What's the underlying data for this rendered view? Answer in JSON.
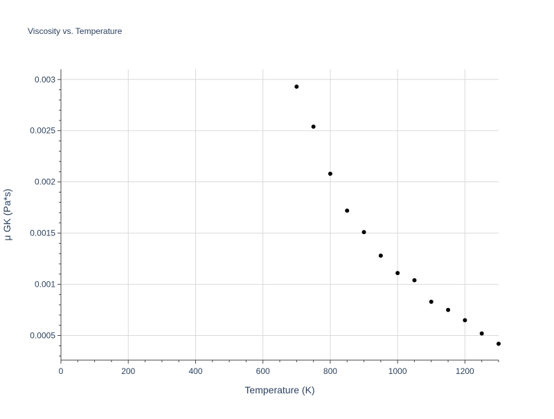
{
  "chart_data": {
    "type": "scatter",
    "title": "Viscosity vs. Temperature",
    "xlabel": "Temperature (K)",
    "ylabel": "μ GK (Pa*s)",
    "xlim": [
      0,
      1300
    ],
    "ylim": [
      0.00026,
      0.0031
    ],
    "x_ticks": [
      0,
      200,
      400,
      600,
      800,
      1000,
      1200
    ],
    "x_tick_labels": [
      "0",
      "200",
      "400",
      "600",
      "800",
      "1000",
      "1200"
    ],
    "y_ticks": [
      0.0005,
      0.001,
      0.0015,
      0.002,
      0.0025,
      0.003
    ],
    "y_tick_labels": [
      "0.0005",
      "0.001",
      "0.0015",
      "0.002",
      "0.0025",
      "0.003"
    ],
    "grid": true,
    "marker_color": "#000000",
    "grid_color": "#d9d9d9",
    "axis_color": "#444444",
    "series": [
      {
        "x": [
          700,
          750,
          800,
          850,
          900,
          950,
          1000,
          1050,
          1100,
          1150,
          1200,
          1250,
          1300
        ],
        "y": [
          0.00293,
          0.00254,
          0.00208,
          0.00172,
          0.00151,
          0.00128,
          0.00111,
          0.00104,
          0.00083,
          0.00075,
          0.00065,
          0.00052,
          0.00042
        ]
      }
    ]
  }
}
